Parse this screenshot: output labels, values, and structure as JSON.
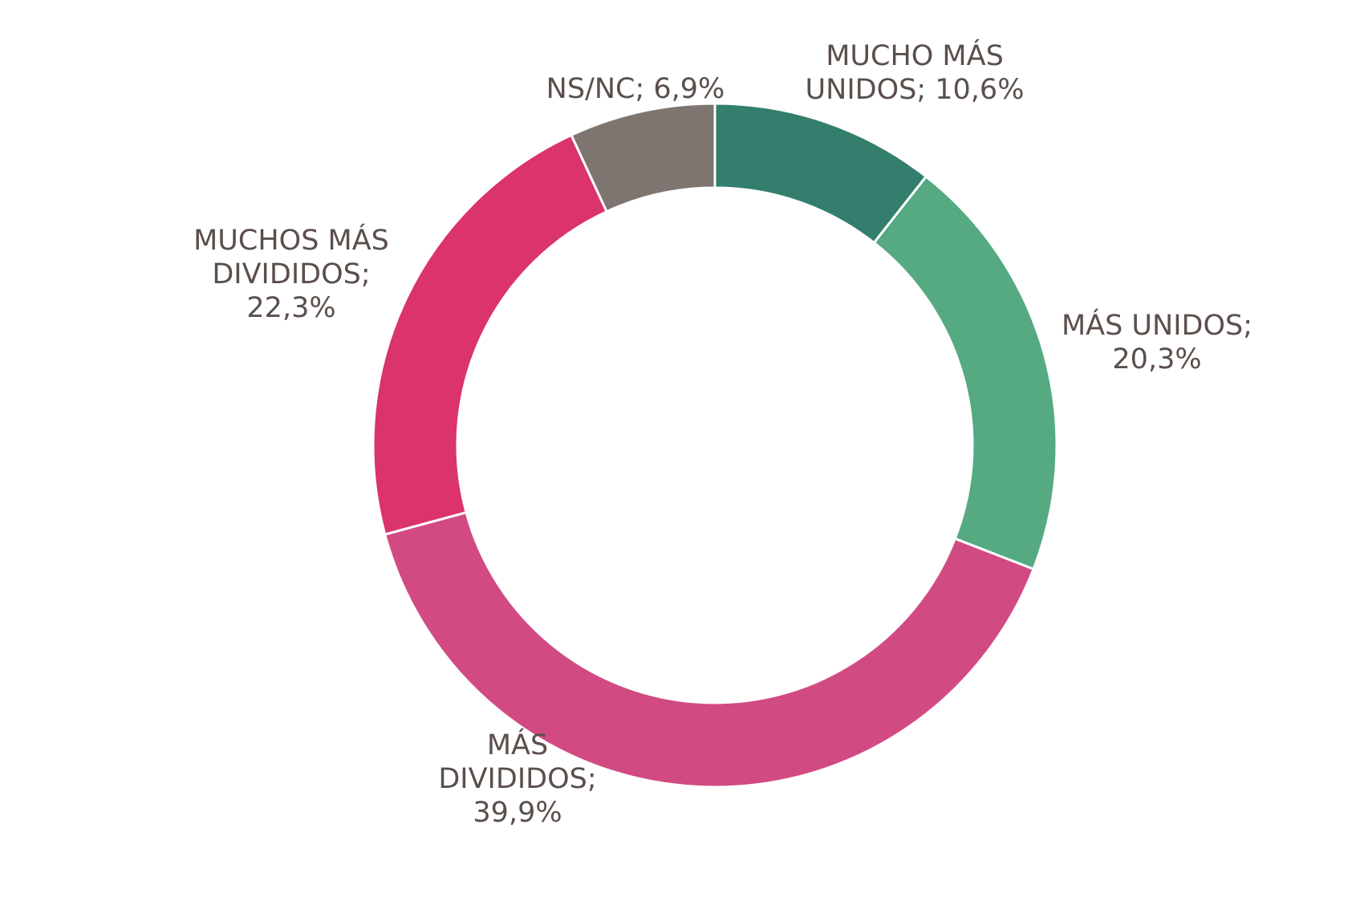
{
  "chart_data": {
    "type": "pie",
    "variant": "donut",
    "start_angle_deg": 0,
    "direction": "clockwise",
    "slices": [
      {
        "label": "MUCHO MÁS UNIDOS",
        "value": 10.6,
        "value_text": "10,6%",
        "label_lines": [
          "MUCHO MÁS",
          "UNIDOS; 10,6%"
        ],
        "color": "#337e6d"
      },
      {
        "label": "MÁS UNIDOS",
        "value": 20.3,
        "value_text": "20,3%",
        "label_lines": [
          "MÁS UNIDOS;",
          "20,3%"
        ],
        "color": "#55aa82"
      },
      {
        "label": "MÁS DIVIDIDOS",
        "value": 39.9,
        "value_text": "39,9%",
        "label_lines": [
          "MÁS",
          "DIVIDIDOS;",
          "39,9%"
        ],
        "color": "#d24a82"
      },
      {
        "label": "MUCHOS MÁS DIVIDIDOS",
        "value": 22.3,
        "value_text": "22,3%",
        "label_lines": [
          "MUCHOS MÁS",
          "DIVIDIDOS;",
          "22,3%"
        ],
        "color": "#db336c"
      },
      {
        "label": "NS/NC",
        "value": 6.9,
        "value_text": "6,9%",
        "label_lines": [
          "NS/NC; 6,9%"
        ],
        "color": "#7e7570"
      }
    ],
    "legend": "none",
    "label_position": "outside"
  }
}
